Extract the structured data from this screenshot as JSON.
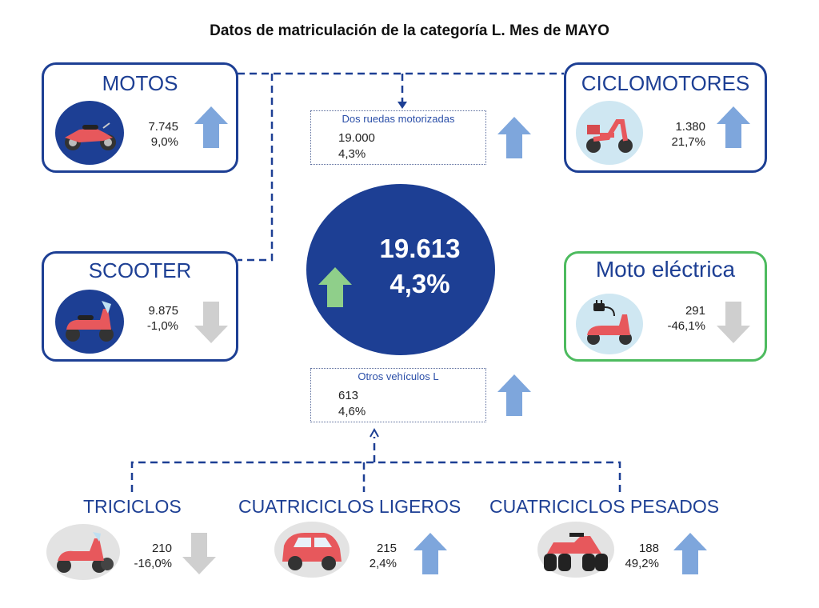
{
  "title": "Datos de matriculación de la categoría L. Mes de MAYO",
  "colors": {
    "navy": "#1d3f94",
    "arrow_up_blue": "#7ea6dc",
    "arrow_up_green": "#8fcf8a",
    "arrow_down_grey": "#cfcfcf",
    "card_green_border": "#4dbb5f"
  },
  "total": {
    "value": "19.613",
    "change": "4,3%",
    "trend": "up",
    "arrow_color": "green"
  },
  "motos": {
    "name": "MOTOS",
    "value": "7.745",
    "change": "9,0%",
    "trend": "up",
    "icon": "motorcycle-icon"
  },
  "ciclomotores": {
    "name": "CICLOMOTORES",
    "value": "1.380",
    "change": "21,7%",
    "trend": "up",
    "icon": "moped-icon"
  },
  "scooter": {
    "name": "SCOOTER",
    "value": "9.875",
    "change": "-1,0%",
    "trend": "down",
    "icon": "scooter-icon"
  },
  "moto_electrica": {
    "name": "Moto eléctrica",
    "value": "291",
    "change": "-46,1%",
    "trend": "down",
    "icon": "electric-scooter-icon"
  },
  "dos_ruedas": {
    "label": "Dos ruedas motorizadas",
    "value": "19.000",
    "change": "4,3%",
    "trend": "up"
  },
  "otros": {
    "label": "Otros vehículos L",
    "value": "613",
    "change": "4,6%",
    "trend": "up"
  },
  "triciclos": {
    "name": "TRICICLOS",
    "value": "210",
    "change": "-16,0%",
    "trend": "down",
    "icon": "tricycle-icon"
  },
  "cuatriciclos_ligeros": {
    "name": "CUATRICICLOS LIGEROS",
    "value": "215",
    "change": "2,4%",
    "trend": "up",
    "icon": "microcar-icon"
  },
  "cuatriciclos_pesados": {
    "name": "CUATRICICLOS PESADOS",
    "value": "188",
    "change": "49,2%",
    "trend": "up",
    "icon": "quad-icon"
  }
}
